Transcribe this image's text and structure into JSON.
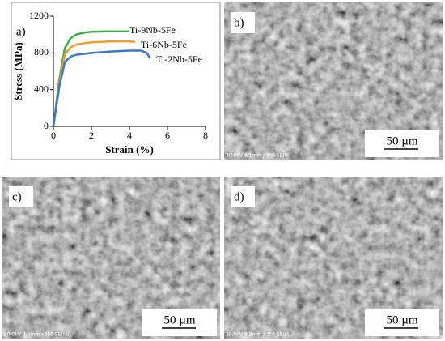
{
  "chart_data": {
    "type": "line",
    "panel_label": "a)",
    "xlabel": "Strain (%)",
    "ylabel": "Stress (MPa)",
    "xlim": [
      0,
      8
    ],
    "ylim": [
      0,
      1200
    ],
    "xticks": [
      0,
      2,
      4,
      6,
      8
    ],
    "yticks": [
      0,
      400,
      800,
      1200
    ],
    "series": [
      {
        "name": "Ti-9Nb-5Fe",
        "color": "#3cb043",
        "x": [
          0,
          0.3,
          0.6,
          0.9,
          1.2,
          1.6,
          2,
          3,
          4
        ],
        "values": [
          0,
          500,
          850,
          960,
          1000,
          1020,
          1030,
          1035,
          1035
        ]
      },
      {
        "name": "Ti-6Nb-5Fe",
        "color": "#f39c33",
        "x": [
          0,
          0.3,
          0.6,
          0.9,
          1.2,
          1.6,
          2,
          3,
          4,
          4.3
        ],
        "values": [
          0,
          450,
          780,
          860,
          890,
          905,
          915,
          925,
          925,
          920
        ]
      },
      {
        "name": "Ti-2Nb-5Fe",
        "color": "#3b78c9",
        "x": [
          0,
          0.3,
          0.6,
          0.9,
          1.2,
          2,
          3,
          4,
          4.6,
          4.9,
          5.1
        ],
        "values": [
          0,
          420,
          700,
          760,
          780,
          800,
          815,
          825,
          825,
          800,
          740
        ]
      }
    ]
  },
  "micrographs": [
    {
      "label": "b)",
      "scale_bar": "50 µm",
      "info": "20.0kV 9.1mm x300 SE(M)"
    },
    {
      "label": "c)",
      "scale_bar": "50 µm",
      "info": "20.0kV 8.5mm x350 SE(M)"
    },
    {
      "label": "d)",
      "scale_bar": "50 µm",
      "info": "20.0kV 8.8mm x350 SE(M)"
    }
  ]
}
